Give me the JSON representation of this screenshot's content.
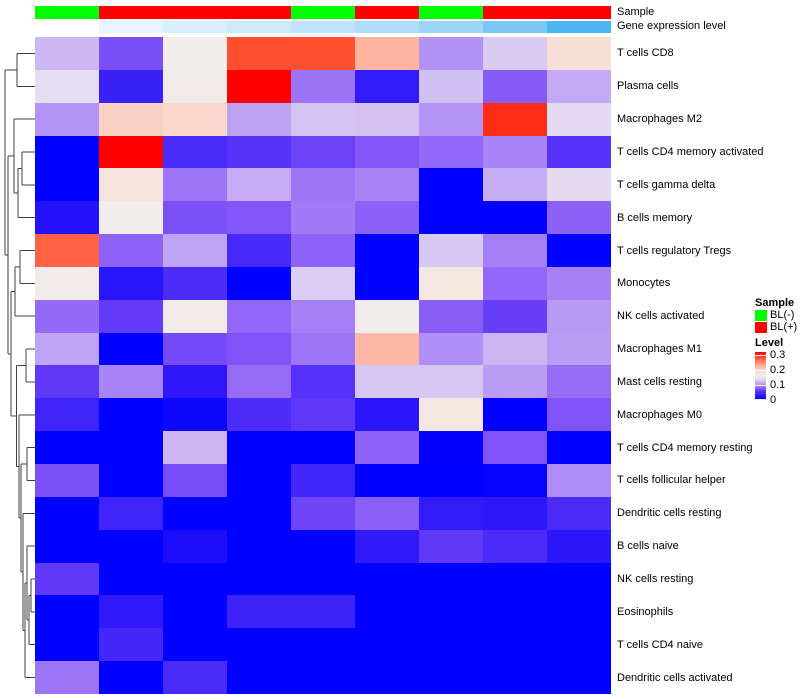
{
  "figure_title": "",
  "annotations": {
    "sample": {
      "label": "Sample",
      "groups": [
        "BL(-)",
        "BL(+)",
        "BL(+)",
        "BL(+)",
        "BL(-)",
        "BL(+)",
        "BL(-)",
        "BL(+)",
        "BL(+)"
      ],
      "group_colors": {
        "BL(-)": "#00FF00",
        "BL(+)": "#FF0000"
      }
    },
    "gene_expression": {
      "label": "Gene expression level",
      "column_colors": [
        "#FFFFFF",
        "#E8F4FD",
        "#D9EEFC",
        "#CDE9FB",
        "#BEE3FA",
        "#AFDCF9",
        "#9DD5F8",
        "#7BC8F5",
        "#4DB7F2"
      ]
    }
  },
  "legend": {
    "sample": {
      "title": "Sample",
      "items": [
        {
          "label": "BL(-)",
          "color": "#00FF00"
        },
        {
          "label": "BL(+)",
          "color": "#FF0000"
        }
      ]
    },
    "level": {
      "title": "Level",
      "min": 0,
      "max": 0.32,
      "ticks": [
        {
          "label": "0.3",
          "value": 0.3
        },
        {
          "label": "0.2",
          "value": 0.2
        },
        {
          "label": "0.1",
          "value": 0.1
        },
        {
          "label": "0",
          "value": 0
        }
      ]
    }
  },
  "chart_data": {
    "type": "heatmap",
    "columns": 9,
    "rows": [
      "T cells CD8",
      "Plasma cells",
      "Macrophages M2",
      "T cells CD4 memory activated",
      "T cells gamma delta",
      "B cells memory",
      "T cells regulatory Tregs",
      "Monocytes",
      "NK cells activated",
      "Macrophages M1",
      "Mast cells resting",
      "Macrophages M0",
      "T cells CD4 memory resting",
      "T cells follicular helper",
      "Dendritic cells resting",
      "B cells naive",
      "NK cells resting",
      "Eosinophils",
      "T cells CD4 naive",
      "Dendritic cells activated"
    ],
    "values": [
      [
        0.119,
        0.071,
        0.16,
        0.283,
        0.283,
        0.225,
        0.1,
        0.131,
        0.185
      ],
      [
        0.143,
        0.037,
        0.162,
        0.32,
        0.087,
        0.033,
        0.124,
        0.076,
        0.112
      ],
      [
        0.101,
        0.202,
        0.196,
        0.108,
        0.127,
        0.126,
        0.101,
        0.3,
        0.139
      ],
      [
        0.001,
        0.32,
        0.047,
        0.055,
        0.065,
        0.075,
        0.082,
        0.094,
        0.054
      ],
      [
        0.001,
        0.177,
        0.088,
        0.113,
        0.088,
        0.094,
        0.001,
        0.114,
        0.14
      ],
      [
        0.024,
        0.16,
        0.072,
        0.074,
        0.09,
        0.079,
        0.001,
        0.001,
        0.079
      ],
      [
        0.272,
        0.08,
        0.109,
        0.045,
        0.08,
        0.001,
        0.129,
        0.092,
        0.001
      ],
      [
        0.162,
        0.027,
        0.049,
        0.001,
        0.133,
        0.001,
        0.172,
        0.082,
        0.092
      ],
      [
        0.083,
        0.061,
        0.162,
        0.082,
        0.092,
        0.16,
        0.077,
        0.063,
        0.104
      ],
      [
        0.109,
        0.001,
        0.068,
        0.073,
        0.088,
        0.221,
        0.099,
        0.118,
        0.105
      ],
      [
        0.06,
        0.094,
        0.03,
        0.084,
        0.053,
        0.128,
        0.128,
        0.106,
        0.084
      ],
      [
        0.041,
        0.001,
        0.008,
        0.049,
        0.059,
        0.028,
        0.172,
        0.001,
        0.073
      ],
      [
        0.001,
        0.001,
        0.118,
        0.001,
        0.001,
        0.08,
        0.003,
        0.073,
        0.001
      ],
      [
        0.072,
        0.001,
        0.07,
        0.001,
        0.042,
        0.001,
        0.001,
        0.004,
        0.098
      ],
      [
        0.001,
        0.041,
        0.001,
        0.001,
        0.066,
        0.078,
        0.033,
        0.03,
        0.048
      ],
      [
        0.001,
        0.002,
        0.019,
        0.001,
        0.001,
        0.032,
        0.06,
        0.048,
        0.029
      ],
      [
        0.06,
        0.001,
        0.001,
        0.001,
        0.001,
        0.001,
        0.001,
        0.001,
        0.001
      ],
      [
        0.001,
        0.032,
        0.001,
        0.04,
        0.04,
        0.001,
        0.001,
        0.001,
        0.001
      ],
      [
        0.001,
        0.044,
        0.001,
        0.001,
        0.001,
        0.001,
        0.001,
        0.001,
        0.001
      ],
      [
        0.088,
        0.001,
        0.047,
        0.001,
        0.001,
        0.001,
        0.001,
        0.001,
        0.001
      ]
    ],
    "value_range": [
      0,
      0.32
    ],
    "color_stops": [
      [
        0.0,
        "#0000FF"
      ],
      [
        0.02,
        "#1D0EFA"
      ],
      [
        0.04,
        "#3E22F8"
      ],
      [
        0.06,
        "#6038F8"
      ],
      [
        0.08,
        "#8F62F7"
      ],
      [
        0.1,
        "#B292F6"
      ],
      [
        0.12,
        "#CDB9F2"
      ],
      [
        0.14,
        "#E3DAF2"
      ],
      [
        0.16,
        "#F0EDEC"
      ],
      [
        0.18,
        "#F6E2DA"
      ],
      [
        0.2,
        "#FAD5C7"
      ],
      [
        0.225,
        "#FFB4A0"
      ],
      [
        0.25,
        "#FF8A6E"
      ],
      [
        0.28,
        "#FF5533"
      ],
      [
        0.3,
        "#FF2D17"
      ],
      [
        0.32,
        "#FF0000"
      ]
    ],
    "row_dendrogram": {
      "x": 5,
      "c": [
        {
          "x": 17,
          "c": [
            {
              "leaf": 0
            },
            {
              "leaf": 1
            }
          ]
        },
        {
          "x": 8,
          "c": [
            {
              "x": 14,
              "c": [
                {
                  "leaf": 2
                },
                {
                  "x": 18,
                  "c": [
                    {
                      "x": 22,
                      "c": [
                        {
                          "leaf": 3
                        },
                        {
                          "leaf": 4
                        }
                      ]
                    },
                    {
                      "leaf": 5
                    }
                  ]
                }
              ]
            },
            {
              "x": 11,
              "c": [
                {
                  "x": 15,
                  "c": [
                    {
                      "x": 20,
                      "c": [
                        {
                          "leaf": 6
                        },
                        {
                          "leaf": 7
                        }
                      ]
                    },
                    {
                      "leaf": 8
                    }
                  ]
                },
                {
                  "x": 16.5,
                  "c": [
                    {
                      "x": 26,
                      "c": [
                        {
                          "leaf": 9
                        },
                        {
                          "leaf": 10
                        }
                      ]
                    },
                    {
                      "x": 19,
                      "c": [
                        {
                          "leaf": 11
                        },
                        {
                          "x": 21,
                          "c": [
                            {
                              "x": 27,
                              "c": [
                                {
                                  "leaf": 12
                                },
                                {
                                  "leaf": 13
                                }
                              ]
                            },
                            {
                              "x": 23,
                              "c": [
                                {
                                  "leaf": 14
                                },
                                {
                                  "x": 25,
                                  "c": [
                                    {
                                      "x": 27,
                                      "c": [
                                        {
                                          "leaf": 15
                                        },
                                        {
                                          "x": 29,
                                          "c": [
                                            {
                                              "x": 31,
                                              "c": [
                                                {
                                                  "leaf": 16
                                                },
                                                {
                                                  "leaf": 17
                                                }
                                              ]
                                            },
                                            {
                                              "leaf": 18
                                            }
                                          ]
                                        }
                                      ]
                                    },
                                    {
                                      "leaf": 19
                                    }
                                  ]
                                }
                              ]
                            }
                          ]
                        }
                      ]
                    }
                  ]
                }
              ]
            }
          ]
        }
      ]
    }
  }
}
